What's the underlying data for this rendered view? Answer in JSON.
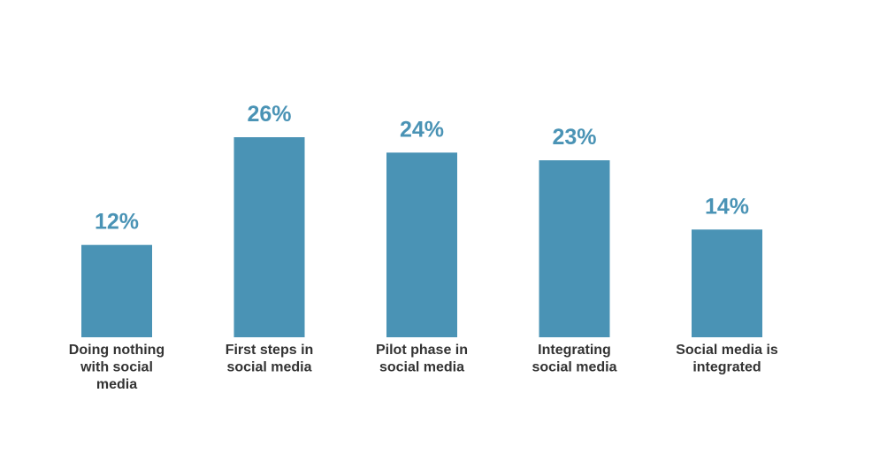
{
  "chart_data": {
    "type": "bar",
    "categories": [
      "Doing nothing with social media",
      "First steps in social media",
      "Pilot phase in social media",
      "Integrating social media",
      "Social media is integrated"
    ],
    "category_lines": [
      [
        "Doing nothing",
        "with social",
        "media"
      ],
      [
        "First steps in",
        "social media"
      ],
      [
        "Pilot phase in",
        "social media"
      ],
      [
        "Integrating",
        "social media"
      ],
      [
        "Social media is",
        "integrated"
      ]
    ],
    "values": [
      12,
      26,
      24,
      23,
      14
    ],
    "value_labels": [
      "12%",
      "26%",
      "24%",
      "23%",
      "14%"
    ],
    "title": "",
    "xlabel": "",
    "ylabel": "",
    "ylim": [
      0,
      30
    ],
    "grid": false,
    "legend": "none",
    "colors": {
      "bar": "#4a93b5",
      "value_label": "#4a93b5",
      "category_label": "#333333"
    }
  }
}
